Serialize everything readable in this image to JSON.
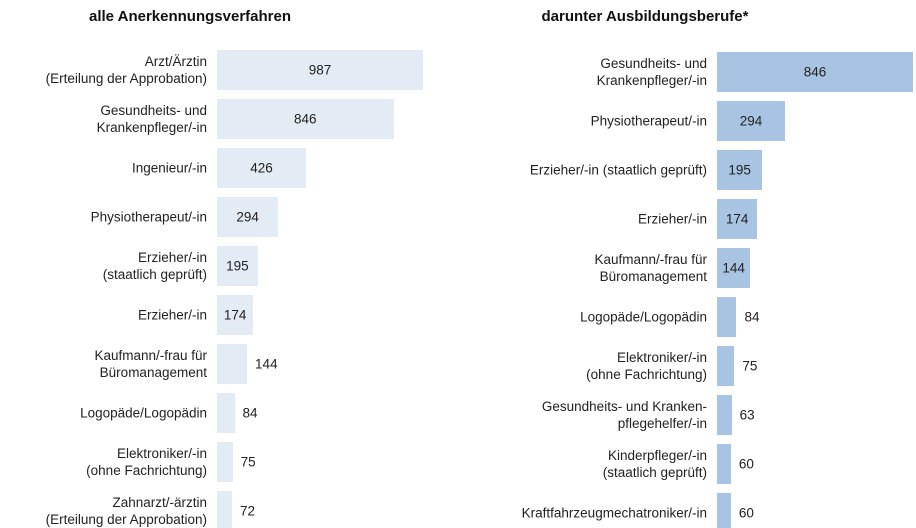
{
  "chart_data": [
    {
      "type": "bar",
      "orientation": "horizontal",
      "title": "alle Anerkennungsverfahren",
      "color": "#e3ebf5",
      "categories": [
        "Arzt/Ärztin\n(Erteilung der Approbation)",
        "Gesundheits- und\nKrankenpfleger/-in",
        "Ingenieur/-in",
        "Physiotherapeut/-in",
        "Erzieher/-in\n(staatlich geprüft)",
        "Erzieher/-in",
        "Kaufmann/-frau für\nBüromanagement",
        "Logopäde/Logopädin",
        "Elektroniker/-in\n(ohne Fachrichtung)",
        "Zahnarzt/-ärztin\n(Erteilung der Approbation)"
      ],
      "values": [
        987,
        846,
        426,
        294,
        195,
        174,
        144,
        84,
        75,
        72
      ]
    },
    {
      "type": "bar",
      "orientation": "horizontal",
      "title": "darunter Ausbildungsberufe*",
      "color": "#a9c4e3",
      "categories": [
        "Gesundheits- und\nKrankenpfleger/-in",
        "Physiotherapeut/-in",
        "Erzieher/-in (staatlich geprüft)",
        "Erzieher/-in",
        "Kaufmann/-frau für\nBüromanagement",
        "Logopäde/Logopädin",
        "Elektroniker/-in\n(ohne Fachrichtung)",
        "Gesundheits- und Kranken-\npflegehelfer/-in",
        "Kinderpfleger/-in\n(staatlich geprüft)",
        "Kraftfahrzeugmechatroniker/-in"
      ],
      "values": [
        846,
        294,
        195,
        174,
        144,
        84,
        75,
        63,
        60,
        60
      ]
    }
  ]
}
